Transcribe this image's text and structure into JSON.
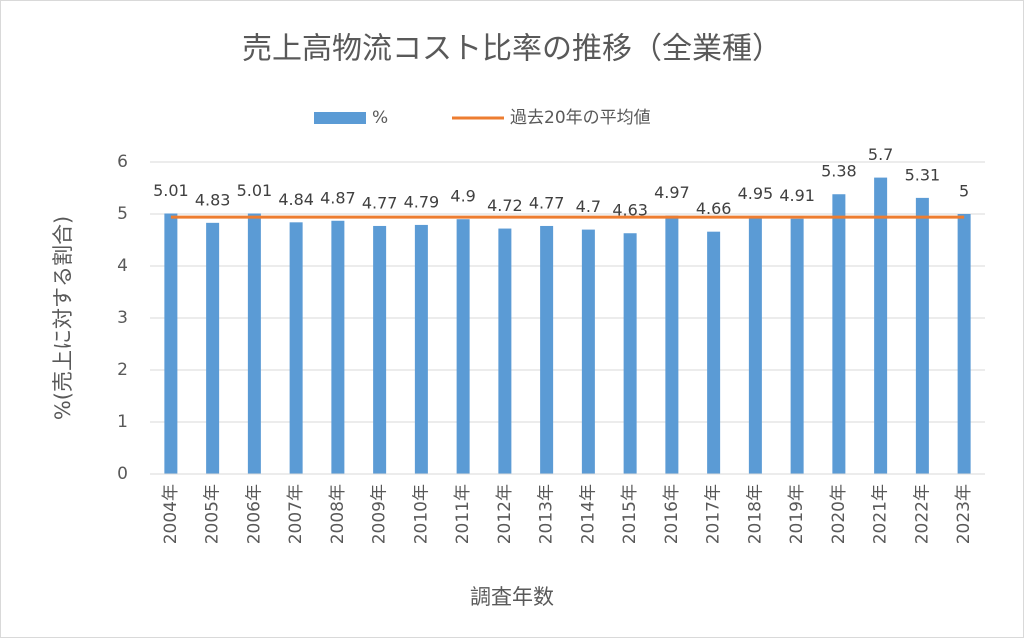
{
  "chart_data": {
    "type": "bar",
    "title": "売上高物流コスト比率の推移（全業種）",
    "x_label": "調査年数",
    "y_label": "%(売上に対する割合)",
    "categories": [
      "2004年",
      "2005年",
      "2006年",
      "2007年",
      "2008年",
      "2009年",
      "2010年",
      "2011年",
      "2012年",
      "2013年",
      "2014年",
      "2015年",
      "2016年",
      "2017年",
      "2018年",
      "2019年",
      "2020年",
      "2021年",
      "2022年",
      "2023年"
    ],
    "series": [
      {
        "name": "%",
        "type": "bar",
        "color": "#5b9bd5",
        "values": [
          5.01,
          4.83,
          5.01,
          4.84,
          4.87,
          4.77,
          4.79,
          4.9,
          4.72,
          4.77,
          4.7,
          4.63,
          4.97,
          4.66,
          4.95,
          4.91,
          5.38,
          5.7,
          5.31,
          5
        ]
      },
      {
        "name": "過去20年の平均値",
        "type": "line",
        "color": "#ed7d31",
        "values": [
          4.94,
          4.94,
          4.94,
          4.94,
          4.94,
          4.94,
          4.94,
          4.94,
          4.94,
          4.94,
          4.94,
          4.94,
          4.94,
          4.94,
          4.94,
          4.94,
          4.94,
          4.94,
          4.94,
          4.94
        ]
      }
    ],
    "ylim": [
      0,
      6
    ],
    "yticks": [
      0,
      1,
      2,
      3,
      4,
      5,
      6
    ],
    "grid": true,
    "legend": "top"
  }
}
